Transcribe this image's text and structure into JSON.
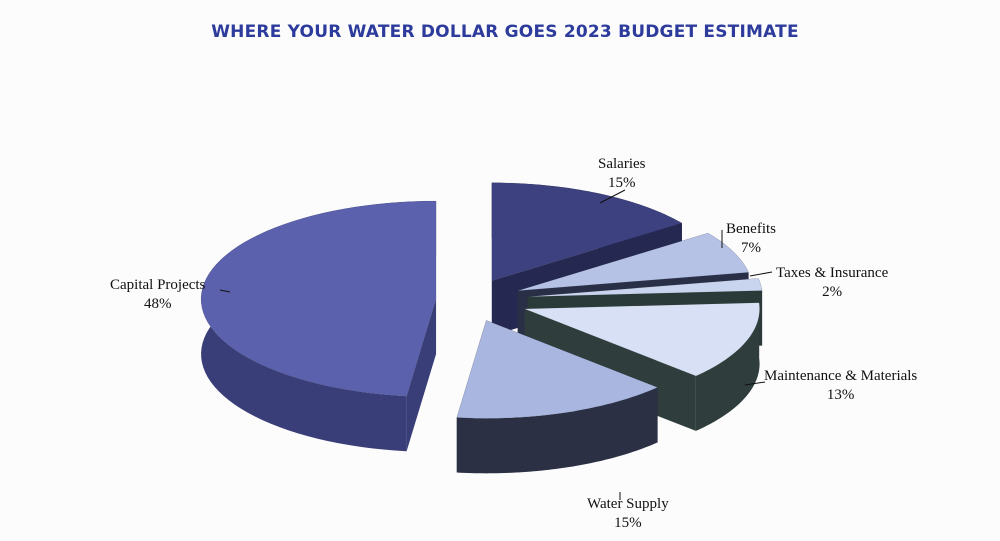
{
  "chart_data": {
    "type": "pie",
    "title": "WHERE YOUR WATER DOLLAR GOES 2023 BUDGET ESTIMATE",
    "style": "3d-exploded",
    "slices": [
      {
        "label": "Salaries",
        "value": 15,
        "value_label": "15%",
        "top_color": "#3d417f",
        "side_color": "#252850"
      },
      {
        "label": "Benefits",
        "value": 7,
        "value_label": "7%",
        "top_color": "#b5c2e6",
        "side_color": "#2a2f48"
      },
      {
        "label": "Taxes & Insurance",
        "value": 2,
        "value_label": "2%",
        "top_color": "#c9d4ee",
        "side_color": "#2a3a38"
      },
      {
        "label": "Maintenance & Materials",
        "value": 13,
        "value_label": "13%",
        "top_color": "#d7e0f4",
        "side_color": "#2f3d3c"
      },
      {
        "label": "Water Supply",
        "value": 15,
        "value_label": "15%",
        "top_color": "#a9b6e0",
        "side_color": "#2b3044"
      },
      {
        "label": "Capital Projects",
        "value": 48,
        "value_label": "48%",
        "top_color": "#5b61ad",
        "side_color": "#3a3e78"
      }
    ]
  }
}
